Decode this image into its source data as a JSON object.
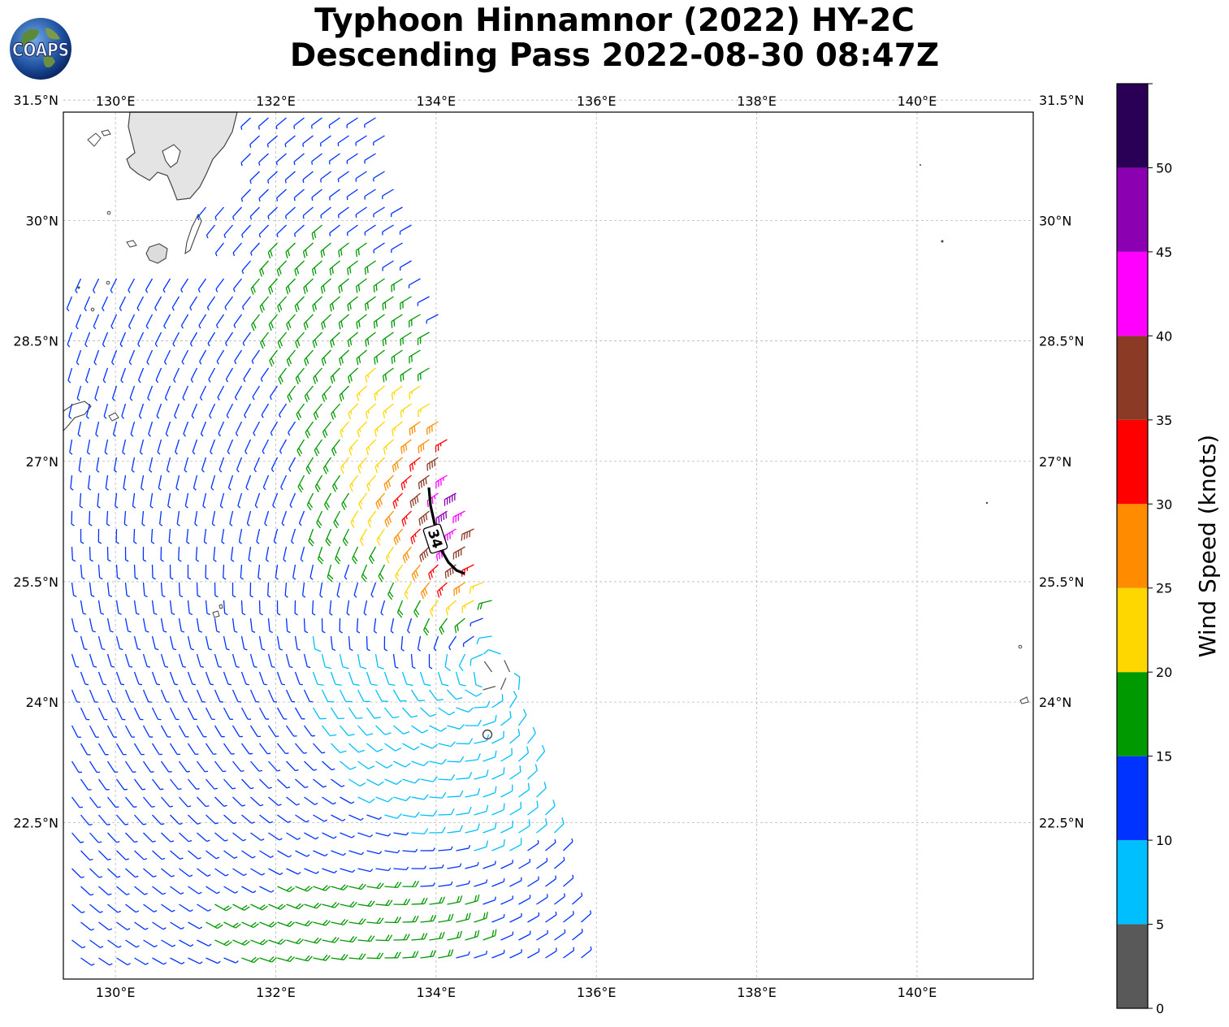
{
  "title": {
    "line1": "Typhoon Hinnamnor (2022) HY-2C",
    "line2": "Descending Pass 2022-08-30 08:47Z"
  },
  "logo": {
    "text": "COAPS"
  },
  "map": {
    "lon_range": [
      129.35,
      141.45
    ],
    "lat_range": [
      20.55,
      31.35
    ],
    "lon_ticks": [
      "130°E",
      "132°E",
      "134°E",
      "136°E",
      "138°E",
      "140°E"
    ],
    "lon_tick_values": [
      130,
      132,
      134,
      136,
      138,
      140
    ],
    "lat_ticks": [
      "22.5°N",
      "24°N",
      "25.5°N",
      "27°N",
      "28.5°N",
      "30°N",
      "31.5°N"
    ],
    "lat_tick_values": [
      22.5,
      24,
      25.5,
      27,
      28.5,
      30,
      31.5
    ],
    "storm_center": [
      134.6,
      24.35
    ],
    "contour_label": "34",
    "gridlines": true
  },
  "colorbar": {
    "title": "Wind Speed (knots)",
    "ticks": [
      "0",
      "5",
      "10",
      "15",
      "20",
      "25",
      "30",
      "35",
      "40",
      "45",
      "50"
    ],
    "bins": [
      {
        "min": 0,
        "max": 5,
        "color": "#595959"
      },
      {
        "min": 5,
        "max": 10,
        "color": "#00bfff"
      },
      {
        "min": 10,
        "max": 15,
        "color": "#0033ff"
      },
      {
        "min": 15,
        "max": 20,
        "color": "#009900"
      },
      {
        "min": 20,
        "max": 25,
        "color": "#ffd700"
      },
      {
        "min": 25,
        "max": 30,
        "color": "#ff8c00"
      },
      {
        "min": 30,
        "max": 35,
        "color": "#ff0000"
      },
      {
        "min": 35,
        "max": 40,
        "color": "#8b3a26"
      },
      {
        "min": 40,
        "max": 45,
        "color": "#ff00ff"
      },
      {
        "min": 45,
        "max": 50,
        "color": "#8b00b0"
      },
      {
        "min": 50,
        "max": 55,
        "color": "#2a0057"
      }
    ]
  }
}
